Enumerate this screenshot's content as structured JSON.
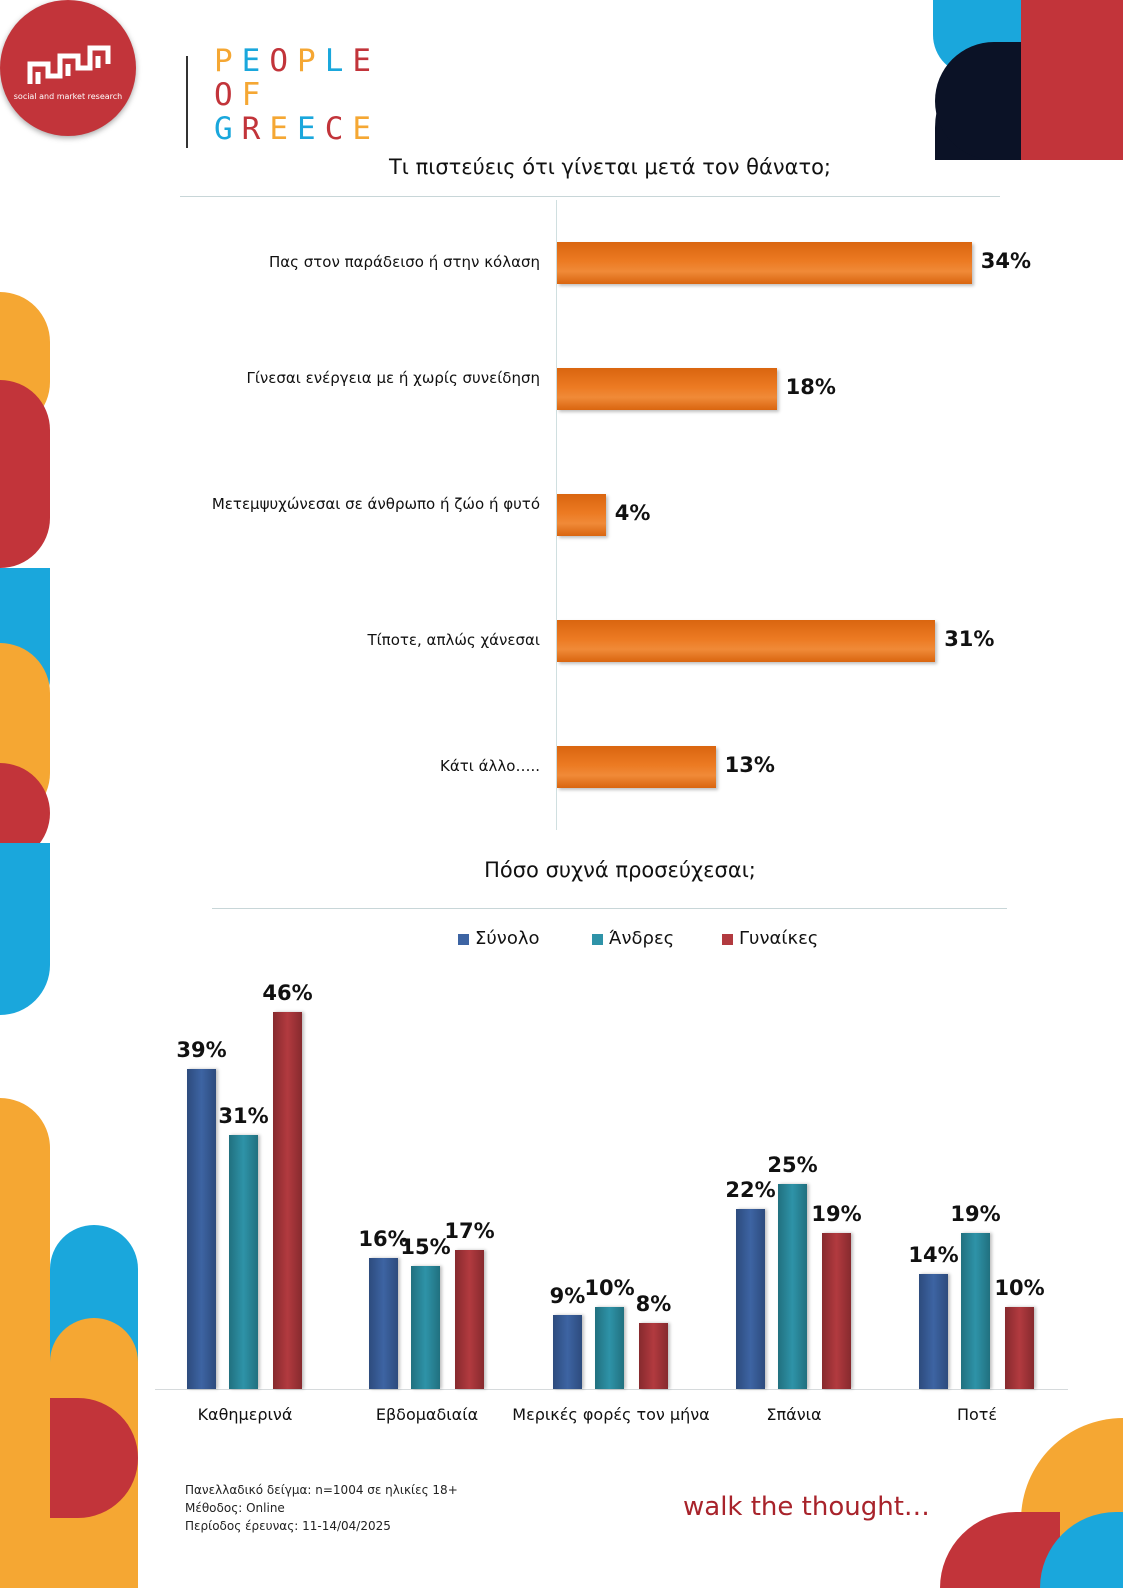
{
  "header": {
    "logo_tagline": "social and market research",
    "brand_lines": [
      "PEOPLE",
      "OF",
      "GREECE"
    ]
  },
  "colors": {
    "orange": "#ec7a22",
    "total": "#3d64a3",
    "men": "#2e93a8",
    "women": "#b23a3f",
    "brand_red": "#c2343a",
    "brand_blue": "#1aa7dc",
    "brand_yellow": "#f5a733",
    "brand_navy": "#0b1226"
  },
  "chart1": {
    "title": "Τι πιστεύεις ότι γίνεται μετά τον θάνατο;"
  },
  "chart2": {
    "title": "Πόσο συχνά προσεύχεσαι;"
  },
  "chart_data": [
    {
      "type": "bar",
      "orientation": "horizontal",
      "title": "Τι πιστεύεις ότι γίνεται μετά τον θάνατο;",
      "categories": [
        "Πας στον παράδεισο ή στην κόλαση",
        "Γίνεσαι ενέργεια με ή χωρίς συνείδηση",
        "Μετεμψυχώνεσαι σε άνθρωπο ή ζώο ή φυτό",
        "Τίποτε, απλώς χάνεσαι",
        "Κάτι άλλο….."
      ],
      "values": [
        34,
        18,
        4,
        31,
        13
      ],
      "value_labels": [
        "34%",
        "18%",
        "4%",
        "31%",
        "13%"
      ]
    },
    {
      "type": "bar",
      "title": "Πόσο συχνά προσεύχεσαι;",
      "categories": [
        "Καθημερινά",
        "Εβδομαδιαία",
        "Μερικές φορές τον μήνα",
        "Σπάνια",
        "Ποτέ"
      ],
      "series": [
        {
          "name": "Σύνολο",
          "values": [
            39,
            16,
            9,
            22,
            14
          ],
          "labels": [
            "39%",
            "16%",
            "9%",
            "22%",
            "14%"
          ]
        },
        {
          "name": "Άνδρες",
          "values": [
            31,
            15,
            10,
            25,
            19
          ],
          "labels": [
            "31%",
            "15%",
            "10%",
            "25%",
            "19%"
          ]
        },
        {
          "name": "Γυναίκες",
          "values": [
            46,
            17,
            8,
            19,
            10
          ],
          "labels": [
            "46%",
            "17%",
            "8%",
            "19%",
            "10%"
          ]
        }
      ],
      "legend": "top"
    }
  ],
  "footer": {
    "notes": [
      "Πανελλαδικό δείγμα: n=1004 σε ηλικίες 18+",
      "Μέθοδος: Online",
      "Περίοδος έρευνας: 11-14/04/2025"
    ],
    "tagline": "walk the thought…"
  }
}
